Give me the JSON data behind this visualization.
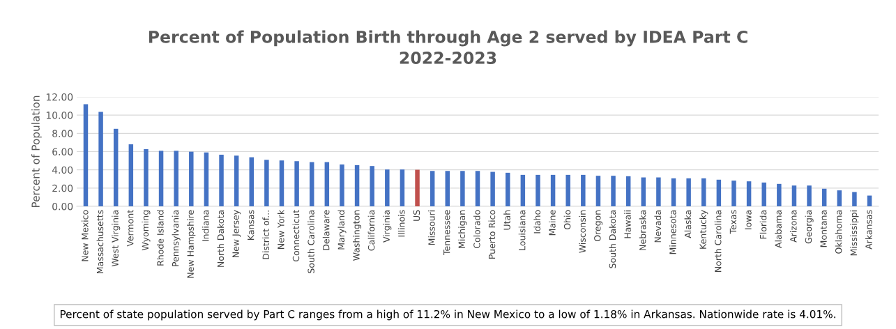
{
  "chart_data": {
    "type": "bar",
    "title": "Percent of Population Birth through Age 2 served by IDEA Part C\n2022-2023",
    "ylabel": "Percent of Population",
    "categories": [
      "New Mexico",
      "Massachusetts",
      "West Virginia",
      "Vermont",
      "Wyoming",
      "Rhode Island",
      "Pennsylvania",
      "New Hampshire",
      "Indiana",
      "North Dakota",
      "New Jersey",
      "Kansas",
      "District of...",
      "New York",
      "Connecticut",
      "South Carolina",
      "Delaware",
      "Maryland",
      "Washington",
      "California",
      "Virginia",
      "Illinois",
      "US",
      "Missouri",
      "Tennessee",
      "Michigan",
      "Colorado",
      "Puerto Rico",
      "Utah",
      "Louisiana",
      "Idaho",
      "Maine",
      "Ohio",
      "Wisconsin",
      "Oregon",
      "South Dakota",
      "Hawaii",
      "Nebraska",
      "Nevada",
      "Minnesota",
      "Alaska",
      "Kentucky",
      "North Carolina",
      "Texas",
      "Iowa",
      "Florida",
      "Alabama",
      "Arizona",
      "Georgia",
      "Montana",
      "Oklahoma",
      "Mississippi",
      "Arkansas"
    ],
    "values": [
      11.2,
      10.36,
      8.5,
      6.8,
      6.27,
      6.09,
      6.09,
      5.99,
      5.91,
      5.66,
      5.56,
      5.38,
      5.1,
      5.03,
      4.95,
      4.85,
      4.85,
      4.59,
      4.52,
      4.42,
      4.04,
      4.04,
      4.01,
      3.88,
      3.88,
      3.88,
      3.88,
      3.78,
      3.68,
      3.45,
      3.45,
      3.45,
      3.45,
      3.45,
      3.35,
      3.35,
      3.3,
      3.17,
      3.17,
      3.07,
      3.07,
      3.07,
      2.92,
      2.82,
      2.74,
      2.61,
      2.46,
      2.28,
      2.28,
      1.93,
      1.75,
      1.57,
      1.18
    ],
    "colors": [
      "#4472c4",
      "#4472c4",
      "#4472c4",
      "#4472c4",
      "#4472c4",
      "#4472c4",
      "#4472c4",
      "#4472c4",
      "#4472c4",
      "#4472c4",
      "#4472c4",
      "#4472c4",
      "#4472c4",
      "#4472c4",
      "#4472c4",
      "#4472c4",
      "#4472c4",
      "#4472c4",
      "#4472c4",
      "#4472c4",
      "#4472c4",
      "#4472c4",
      "#c0504d",
      "#4472c4",
      "#4472c4",
      "#4472c4",
      "#4472c4",
      "#4472c4",
      "#4472c4",
      "#4472c4",
      "#4472c4",
      "#4472c4",
      "#4472c4",
      "#4472c4",
      "#4472c4",
      "#4472c4",
      "#4472c4",
      "#4472c4",
      "#4472c4",
      "#4472c4",
      "#4472c4",
      "#4472c4",
      "#4472c4",
      "#4472c4",
      "#4472c4",
      "#4472c4",
      "#4472c4",
      "#4472c4",
      "#4472c4",
      "#4472c4",
      "#4472c4",
      "#4472c4",
      "#4472c4"
    ],
    "ylim": [
      0,
      12
    ],
    "yticks": [
      {
        "value": 0,
        "label": "0.00"
      },
      {
        "value": 2,
        "label": "2.00"
      },
      {
        "value": 4,
        "label": "4.00"
      },
      {
        "value": 6,
        "label": "6.00"
      },
      {
        "value": 8,
        "label": "8.00"
      },
      {
        "value": 10,
        "label": "10.00"
      },
      {
        "value": 12,
        "label": "12.00"
      }
    ],
    "grid": "y",
    "annotations": [
      "Percent of state population served by Part C ranges from a high of 11.2% in New Mexico to a low of 1.18% in Arkansas. Nationwide rate is 4.01%."
    ]
  }
}
